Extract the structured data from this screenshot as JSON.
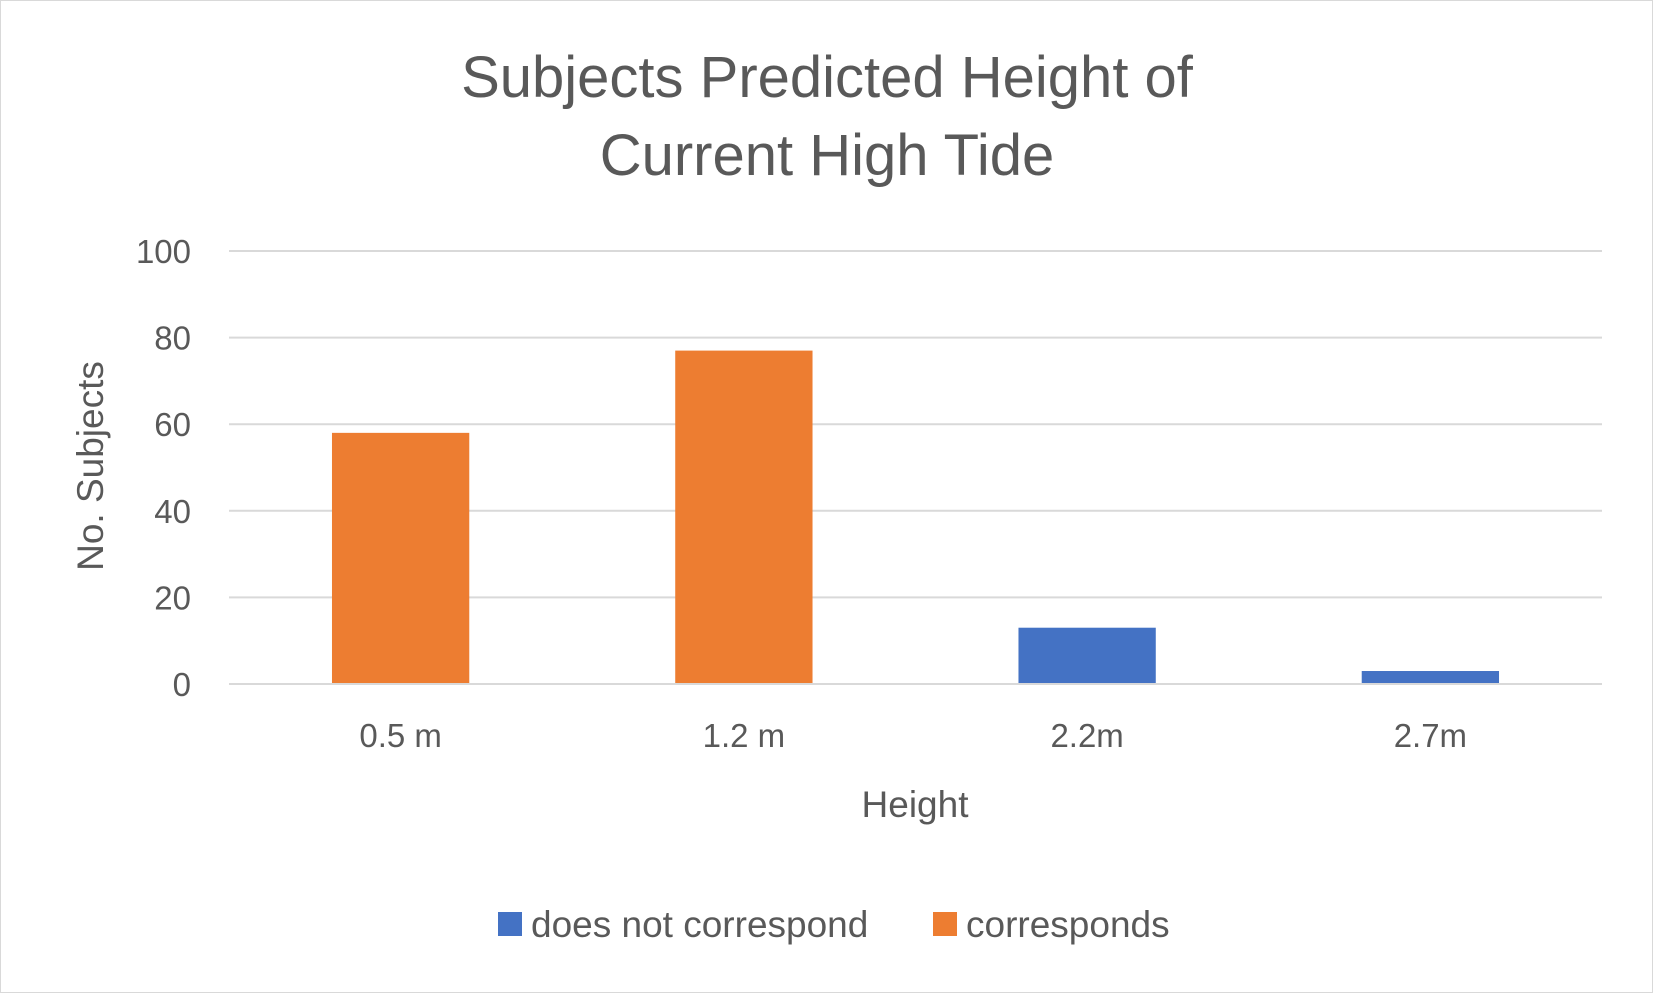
{
  "chart_data": {
    "type": "bar",
    "title_lines": [
      "Subjects Predicted Height of",
      "Current High Tide"
    ],
    "xlabel": "Height",
    "ylabel": "No. Subjects",
    "ylim": [
      0,
      100
    ],
    "yticks": [
      0,
      20,
      40,
      60,
      80,
      100
    ],
    "categories": [
      "0.5 m",
      "1.2 m",
      "2.2m",
      "2.7m"
    ],
    "stacked": true,
    "grid": true,
    "legend_position": "bottom",
    "series": [
      {
        "name": "does not correspond",
        "color": "#4472C4",
        "values": [
          0,
          0,
          13,
          3
        ]
      },
      {
        "name": "corresponds",
        "color": "#ED7D31",
        "values": [
          58,
          77,
          0,
          0
        ]
      }
    ]
  }
}
